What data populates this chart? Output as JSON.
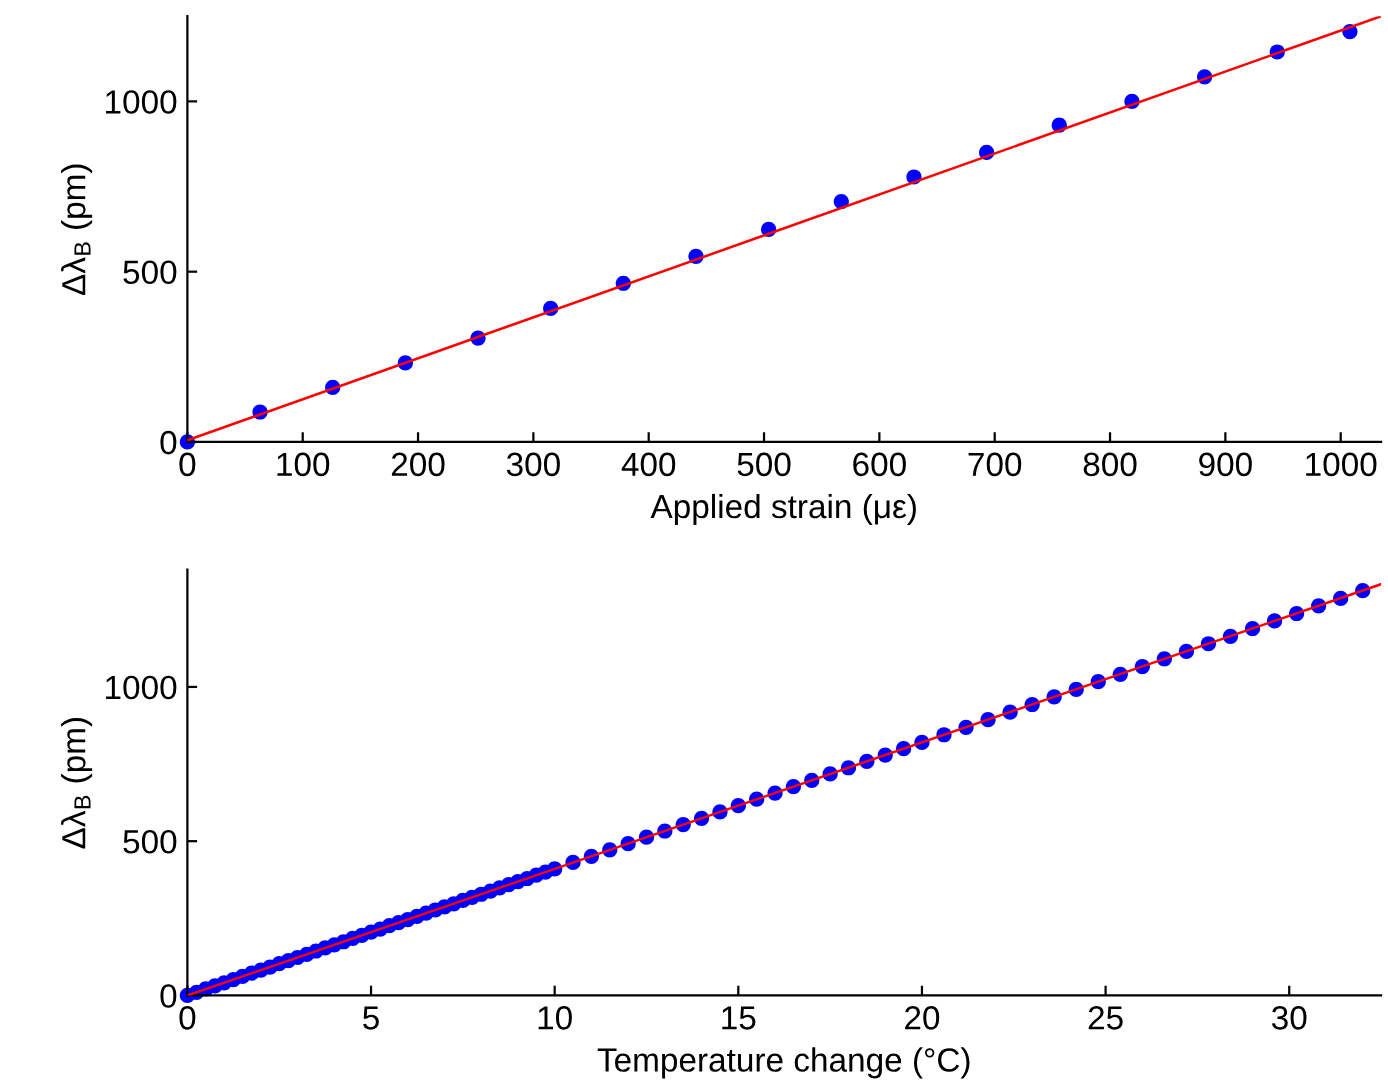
{
  "chart_data": [
    {
      "type": "scatter",
      "xlabel": "Applied strain (με)",
      "ylabel": "Δλ$_{B}$ (pm)",
      "xlim": [
        0,
        1035
      ],
      "ylim": [
        0,
        1250
      ],
      "xticks": [
        0,
        100,
        200,
        300,
        400,
        500,
        600,
        700,
        800,
        900,
        1000
      ],
      "yticks": [
        0,
        500,
        1000
      ],
      "grid": false,
      "legend": false,
      "series": [
        {
          "marker": "circle",
          "color": "#0000ff",
          "x": [
            0,
            63,
            126,
            189,
            252,
            315,
            378,
            441,
            504,
            567,
            630,
            693,
            756,
            819,
            882,
            945,
            1008
          ],
          "values": [
            0,
            88,
            160,
            232,
            305,
            392,
            466,
            545,
            624,
            706,
            778,
            850,
            930,
            1000,
            1072,
            1145,
            1205
          ]
        },
        {
          "type": "line",
          "color": "#ff0000",
          "x": [
            0,
            1035
          ],
          "values": [
            5,
            1250
          ]
        }
      ]
    },
    {
      "type": "scatter",
      "xlabel": "Temperature change (°C)",
      "ylabel": "Δλ$_{B}$ (pm)",
      "xlim": [
        0,
        32.5
      ],
      "ylim": [
        0,
        1380
      ],
      "xticks": [
        0,
        5,
        10,
        15,
        20,
        25,
        30
      ],
      "yticks": [
        0,
        500,
        1000
      ],
      "grid": false,
      "legend": false,
      "series": [
        {
          "marker": "circle",
          "color": "#0000ff",
          "x": [
            0,
            0.25,
            0.5,
            0.75,
            1,
            1.25,
            1.5,
            1.75,
            2,
            2.25,
            2.5,
            2.75,
            3,
            3.25,
            3.5,
            3.75,
            4,
            4.25,
            4.5,
            4.75,
            5,
            5.25,
            5.5,
            5.75,
            6,
            6.25,
            6.5,
            6.75,
            7,
            7.25,
            7.5,
            7.75,
            8,
            8.25,
            8.5,
            8.75,
            9,
            9.25,
            9.5,
            9.75,
            10,
            10.5,
            11,
            11.5,
            12,
            12.5,
            13,
            13.5,
            14,
            14.5,
            15,
            15.5,
            16,
            16.5,
            17,
            17.5,
            18,
            18.5,
            19,
            19.5,
            20,
            20.6,
            21.2,
            21.8,
            22.4,
            23.0,
            23.6,
            24.2,
            24.8,
            25.4,
            26.0,
            26.6,
            27.2,
            27.8,
            28.4,
            29.0,
            29.6,
            30.2,
            30.8,
            31.4,
            32.0
          ],
          "values": [
            0,
            10,
            21,
            31,
            41,
            51,
            62,
            72,
            82,
            92,
            103,
            113,
            123,
            133,
            144,
            154,
            164,
            174,
            185,
            195,
            205,
            215,
            226,
            236,
            246,
            256,
            267,
            277,
            287,
            297,
            308,
            318,
            328,
            338,
            349,
            359,
            369,
            379,
            390,
            400,
            410,
            431,
            451,
            472,
            492,
            513,
            533,
            554,
            574,
            595,
            615,
            636,
            656,
            677,
            697,
            718,
            738,
            759,
            779,
            800,
            820,
            845,
            869,
            894,
            918,
            943,
            968,
            992,
            1017,
            1041,
            1066,
            1091,
            1115,
            1140,
            1164,
            1189,
            1214,
            1238,
            1263,
            1287,
            1312
          ]
        },
        {
          "type": "line",
          "color": "#ff0000",
          "x": [
            0,
            32.5
          ],
          "values": [
            0,
            1333
          ]
        }
      ]
    }
  ]
}
